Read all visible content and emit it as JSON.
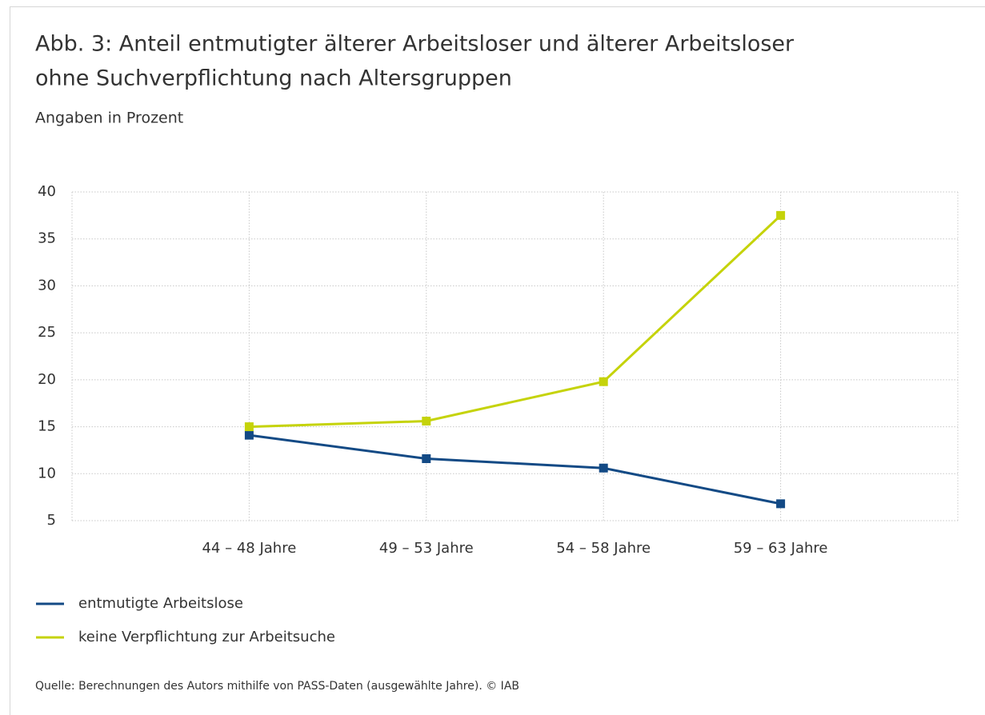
{
  "chart_data": {
    "type": "line",
    "title": [
      "Abb. 3: Anteil entmutigter älterer Arbeitsloser und älterer Arbeitsloser",
      "ohne Suchverpflichtung nach Altersgruppen"
    ],
    "subtitle": "Angaben in Prozent",
    "categories": [
      null,
      "44 – 48 Jahre",
      "49 – 53 Jahre",
      "54 – 58 Jahre",
      "59 – 63 Jahre",
      null
    ],
    "series": [
      {
        "name": "entmutigte Arbeitslose",
        "color": "#134a85",
        "values": [
          null,
          14.1,
          11.6,
          10.6,
          6.8,
          null
        ]
      },
      {
        "name": "keine Verpflichtung zur Arbeitsuche",
        "color": "#c5d30a",
        "values": [
          null,
          15.0,
          15.6,
          19.8,
          37.5,
          null
        ]
      }
    ],
    "ylim": [
      5,
      40
    ],
    "yticks": [
      5,
      10,
      15,
      20,
      25,
      30,
      35,
      40
    ],
    "grid": true,
    "legend": "bottom-left",
    "source": "Quelle: Berechnungen des Autors mithilfe von PASS-Daten (ausgewählte Jahre). © IAB"
  }
}
